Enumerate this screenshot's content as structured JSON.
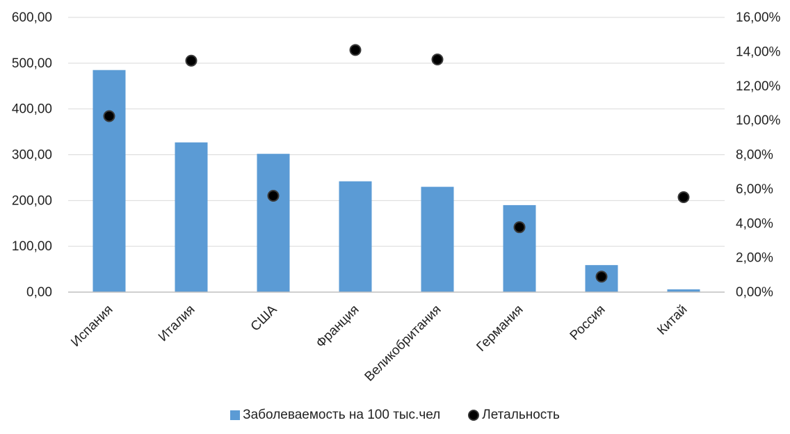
{
  "chart_data": {
    "type": "bar",
    "categories": [
      "Испания",
      "Италия",
      "США",
      "Франция",
      "Великобритания",
      "Германия",
      "Россия",
      "Китай"
    ],
    "series": [
      {
        "name": "Заболеваемость на 100 тыс.чел",
        "type": "bar",
        "axis": "left",
        "color": "#5b9bd5",
        "values": [
          485,
          327,
          302,
          242,
          230,
          190,
          59,
          6
        ]
      },
      {
        "name": "Летальность",
        "type": "scatter",
        "axis": "right",
        "color": "#000000",
        "values": [
          0.1025,
          0.1348,
          0.0561,
          0.141,
          0.1355,
          0.0378,
          0.009,
          0.0553
        ]
      }
    ],
    "y_left": {
      "min": 0,
      "max": 600,
      "step": 100,
      "tick_labels": [
        "0,00",
        "100,00",
        "200,00",
        "300,00",
        "400,00",
        "500,00",
        "600,00"
      ]
    },
    "y_right": {
      "min": 0,
      "max": 0.16,
      "step": 0.02,
      "tick_labels": [
        "0,00%",
        "2,00%",
        "4,00%",
        "6,00%",
        "8,00%",
        "10,00%",
        "12,00%",
        "14,00%",
        "16,00%"
      ]
    },
    "grid": true,
    "legend_position": "bottom"
  }
}
